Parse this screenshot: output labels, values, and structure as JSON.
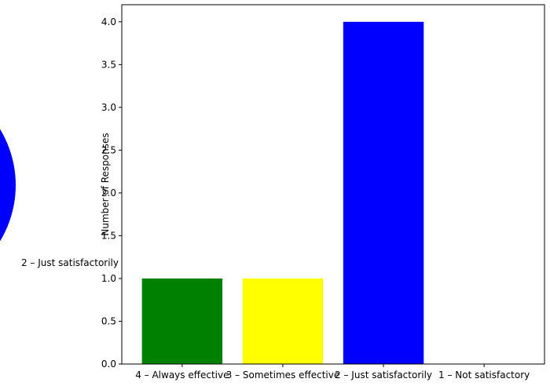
{
  "chart_data": [
    {
      "type": "pie",
      "visible_portion": "partially cropped at the left edge",
      "slices": [
        {
          "label": "2 – Just satisfactorily",
          "color": "#0000ff"
        }
      ]
    },
    {
      "type": "bar",
      "categories": [
        "4 – Always effective",
        "3 – Sometimes effective",
        "2 – Just satisfactorily",
        "1 – Not satisfactory"
      ],
      "values": [
        1,
        1,
        4,
        0
      ],
      "colors": [
        "#008000",
        "#ffff00",
        "#0000ff",
        "#ff0000"
      ],
      "ylabel": "Number of Responses",
      "ylim": [
        0,
        4.2
      ],
      "yticks": [
        0.0,
        0.5,
        1.0,
        1.5,
        2.0,
        2.5,
        3.0,
        3.5,
        4.0
      ],
      "ytick_labels": [
        "0.0",
        "0.5",
        "1.0",
        "1.5",
        "2.0",
        "2.5",
        "3.0",
        "3.5",
        "4.0"
      ],
      "grid": false
    }
  ]
}
